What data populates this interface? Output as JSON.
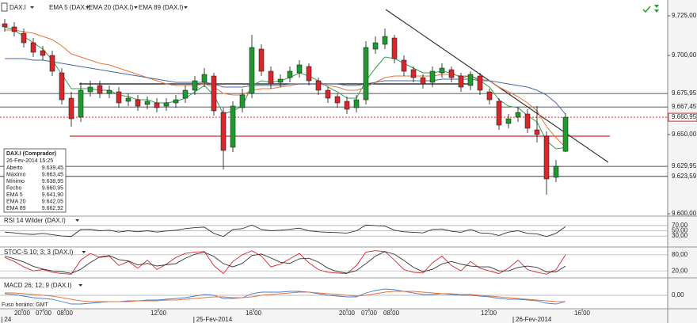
{
  "chart_data": [
    {
      "type": "candlestick",
      "title": "DAX.I",
      "xlim": [
        -0.5,
        69.75
      ],
      "x": [
        0,
        1,
        2,
        3,
        4,
        5,
        6,
        7,
        8,
        9,
        10,
        11,
        12,
        13,
        14,
        15,
        16,
        17,
        18,
        19,
        20,
        21,
        22,
        23,
        24,
        25,
        26,
        27,
        28,
        29,
        30,
        31,
        32,
        33,
        34,
        35,
        36,
        37,
        38,
        39,
        40,
        41,
        42,
        43,
        44,
        45,
        46,
        47,
        48,
        49,
        50,
        51,
        52,
        53,
        54,
        55,
        56,
        57,
        58,
        59
      ],
      "open": [
        9720,
        9718,
        9714,
        9708,
        9703,
        9700,
        9689,
        9673,
        9661,
        9677,
        9681,
        9676,
        9677,
        9671,
        9672,
        9669,
        9670,
        9668,
        9670,
        9673,
        9678,
        9683,
        9687,
        9664,
        9642,
        9667,
        9676,
        9704,
        9690,
        9683,
        9686,
        9689,
        9693,
        9684,
        9678,
        9674,
        9671,
        9667,
        9672,
        9704,
        9707,
        9711,
        9697,
        9691,
        9686,
        9683,
        9689,
        9691,
        9687,
        9681,
        9687,
        9677,
        9671,
        9657,
        9661,
        9663,
        9653,
        9649,
        9623,
        9639.45
      ],
      "high": [
        9723,
        9721,
        9717,
        9711,
        9706,
        9703,
        9692,
        9677,
        9683,
        9684,
        9684,
        9681,
        9680,
        9676,
        9675,
        9674,
        9673,
        9673,
        9675,
        9681,
        9687,
        9692,
        9689,
        9667,
        9671,
        9679,
        9713,
        9707,
        9693,
        9688,
        9693,
        9697,
        9695,
        9686,
        9680,
        9676,
        9674,
        9675,
        9709,
        9712,
        9717,
        9713,
        9700,
        9693,
        9688,
        9693,
        9695,
        9693,
        9689,
        9690,
        9689,
        9679,
        9673,
        9663,
        9667,
        9666,
        9668,
        9652,
        9634,
        9663.45
      ],
      "low": [
        9715,
        9712,
        9705,
        9699,
        9697,
        9687,
        9669,
        9655,
        9658,
        9674,
        9673,
        9673,
        9667,
        9668,
        9665,
        9666,
        9664,
        9665,
        9667,
        9670,
        9675,
        9680,
        9662,
        9628,
        9639,
        9664,
        9673,
        9687,
        9679,
        9680,
        9683,
        9686,
        9681,
        9675,
        9670,
        9667,
        9663,
        9664,
        9669,
        9701,
        9704,
        9695,
        9687,
        9683,
        9679,
        9680,
        9686,
        9683,
        9677,
        9678,
        9675,
        9669,
        9653,
        9654,
        9658,
        9651,
        9645,
        9612,
        9620,
        9638.95
      ],
      "close": [
        9718,
        9715,
        9708,
        9702,
        9700,
        9690,
        9672,
        9660,
        9678,
        9680,
        9676,
        9678,
        9670,
        9673,
        9668,
        9671,
        9667,
        9670,
        9672,
        9678,
        9684,
        9688,
        9665,
        9640,
        9668,
        9675,
        9705,
        9690,
        9682,
        9685,
        9690,
        9694,
        9684,
        9678,
        9673,
        9670,
        9666,
        9672,
        9705,
        9708,
        9712,
        9698,
        9690,
        9686,
        9682,
        9690,
        9692,
        9686,
        9680,
        9688,
        9678,
        9672,
        9656,
        9660,
        9664,
        9654,
        9650,
        9622,
        9630,
        9660.95
      ],
      "up_color": "#1f9a2e",
      "down_color": "#d9262a",
      "series": [
        {
          "name": "EMA 5 (DAX.I)",
          "color": "#2e9e4e",
          "values": [
            9718,
            9716,
            9712,
            9708,
            9704,
            9697,
            9688,
            9679,
            9679,
            9679,
            9678,
            9678,
            9675,
            9674,
            9672,
            9672,
            9670,
            9670,
            9671,
            9673,
            9677,
            9681,
            9675,
            9663,
            9665,
            9668,
            9681,
            9684,
            9683,
            9684,
            9686,
            9689,
            9687,
            9684,
            9680,
            9677,
            9673,
            9673,
            9684,
            9692,
            9699,
            9698,
            9695,
            9692,
            9689,
            9689,
            9690,
            9689,
            9686,
            9687,
            9684,
            9680,
            9672,
            9668,
            9667,
            9662,
            9658,
            9646,
            9641,
            9641.9
          ]
        },
        {
          "name": "EMA 20 (DAX.I)",
          "color": "#e8743b",
          "values": [
            9716,
            9716,
            9715,
            9714,
            9712,
            9710,
            9706,
            9701,
            9699,
            9697,
            9695,
            9694,
            9692,
            9690,
            9688,
            9686,
            9684,
            9682,
            9681,
            9681,
            9681,
            9682,
            9680,
            9676,
            9675,
            9675,
            9678,
            9679,
            9679,
            9680,
            9681,
            9682,
            9682,
            9682,
            9681,
            9680,
            9678,
            9678,
            9680,
            9683,
            9686,
            9687,
            9687,
            9687,
            9687,
            9687,
            9688,
            9688,
            9687,
            9687,
            9685,
            9684,
            9680,
            9677,
            9674,
            9670,
            9665,
            9655,
            9648,
            9642.05
          ]
        },
        {
          "name": "EMA 89 (DAX.I)",
          "color": "#4a66a8",
          "values": [
            9698,
            9698,
            9698,
            9697,
            9697,
            9696,
            9695,
            9694,
            9693,
            9692,
            9691,
            9690,
            9689,
            9688,
            9687,
            9686,
            9685,
            9684,
            9683,
            9683,
            9683,
            9683,
            9682,
            9680,
            9680,
            9680,
            9681,
            9681,
            9681,
            9681,
            9682,
            9682,
            9682,
            9682,
            9682,
            9682,
            9681,
            9681,
            9682,
            9683,
            9684,
            9684,
            9684,
            9684,
            9684,
            9684,
            9685,
            9685,
            9685,
            9685,
            9684,
            9684,
            9683,
            9682,
            9681,
            9680,
            9678,
            9675,
            9670,
            9662.92
          ]
        }
      ],
      "ylim": [
        9599,
        9731
      ],
      "yticks": [
        {
          "value": 9725,
          "label": "9.725,00"
        },
        {
          "value": 9700,
          "label": "9.700,00"
        },
        {
          "value": 9650,
          "label": "9.650,00"
        },
        {
          "value": 9600,
          "label": "9.600,00"
        }
      ],
      "levels": [
        {
          "value": 9675.95,
          "label": "9.675,95"
        },
        {
          "value": 9667.45,
          "label": "9.667,45"
        },
        {
          "value": 9629.95,
          "label": "9.629,95"
        },
        {
          "value": 9623.59,
          "label": "9.623,59"
        }
      ],
      "last_price": {
        "value": 9660.95,
        "label": "9.660,95",
        "color": "#d9262a"
      },
      "lines": [
        {
          "x": [
            6.83,
            63.67
          ],
          "y": [
            9649,
            9649
          ],
          "color": "#d9262a"
        },
        {
          "x": [
            7.83,
            49.08
          ],
          "y": [
            9682,
            9682
          ],
          "color": "#111111"
        },
        {
          "x": [
            40.08,
            63.5
          ],
          "y": [
            9729,
            9632.5
          ],
          "color": "#333333"
        }
      ],
      "xticks": [
        {
          "value": 1.83,
          "label": "20:00"
        },
        {
          "value": 4.08,
          "label": "07:00"
        },
        {
          "value": 6.33,
          "label": "08:00"
        },
        {
          "value": 16.17,
          "label": "12:00"
        },
        {
          "value": 26.17,
          "label": "16:00"
        },
        {
          "value": 36,
          "label": "20:00"
        },
        {
          "value": 38.33,
          "label": "07:00"
        },
        {
          "value": 40.67,
          "label": "08:00"
        },
        {
          "value": 50.92,
          "label": "12:00"
        },
        {
          "value": 60.75,
          "label": "16:00"
        }
      ],
      "date_ticks": [
        {
          "value": -0.3,
          "label": "24"
        },
        {
          "value": 19.9,
          "label": "25-Fev-2014"
        },
        {
          "value": 53.5,
          "label": "26-Fev-2014"
        }
      ],
      "timezone": "Fuso horário: GMT",
      "info": {
        "title": "DAX.I (Comprador)",
        "time": "26-Fev-2014 15:25",
        "rows": [
          [
            "Aberto",
            "9.639,45"
          ],
          [
            "Máximo",
            "9.663,45"
          ],
          [
            "Mínimo",
            "9.638,95"
          ],
          [
            "Fecho",
            "9.660,95"
          ],
          [
            "EMA 5",
            "9.641,90"
          ],
          [
            "EMA 20",
            "9.642,05"
          ],
          [
            "EMA 89",
            "9.662,92"
          ]
        ]
      }
    },
    {
      "type": "line",
      "title": "RSI 14 Wilder (DAX.I)",
      "ylim": [
        0,
        100
      ],
      "yticks": [
        {
          "value": 70,
          "label": "70,00"
        },
        {
          "value": 50,
          "label": "50,00"
        },
        {
          "value": 30,
          "label": "30,00"
        }
      ],
      "series": [
        {
          "color": "#333333",
          "values": [
            45,
            42,
            38,
            36,
            40,
            35,
            30,
            28,
            55,
            56,
            50,
            52,
            45,
            50,
            46,
            50,
            45,
            49,
            52,
            58,
            62,
            64,
            40,
            28,
            55,
            58,
            72,
            55,
            50,
            52,
            56,
            60,
            50,
            46,
            44,
            43,
            41,
            50,
            72,
            70,
            68,
            52,
            46,
            44,
            42,
            55,
            57,
            48,
            44,
            55,
            42,
            40,
            32,
            45,
            50,
            40,
            38,
            28,
            40,
            66
          ]
        }
      ]
    },
    {
      "type": "line",
      "title": "STOC-S 10; 3; 3 (DAX.I)",
      "ylim": [
        0,
        100
      ],
      "yticks": [
        {
          "value": 80,
          "label": "80,00"
        },
        {
          "value": 20,
          "label": "20,00"
        }
      ],
      "series": [
        {
          "color": "#d9262a",
          "values": [
            70,
            55,
            35,
            20,
            25,
            15,
            10,
            8,
            60,
            85,
            70,
            75,
            40,
            55,
            30,
            60,
            25,
            45,
            70,
            85,
            90,
            92,
            40,
            10,
            55,
            80,
            95,
            75,
            35,
            45,
            65,
            85,
            50,
            25,
            15,
            12,
            10,
            40,
            90,
            95,
            92,
            60,
            25,
            15,
            12,
            50,
            75,
            40,
            20,
            55,
            30,
            20,
            10,
            30,
            60,
            25,
            15,
            8,
            25,
            80
          ]
        },
        {
          "color": "#333333",
          "values": [
            75,
            65,
            53,
            37,
            27,
            20,
            17,
            11,
            26,
            51,
            72,
            77,
            62,
            57,
            42,
            48,
            38,
            43,
            47,
            67,
            82,
            89,
            74,
            47,
            35,
            48,
            77,
            83,
            68,
            52,
            48,
            65,
            67,
            53,
            30,
            17,
            12,
            21,
            47,
            75,
            92,
            82,
            59,
            33,
            17,
            26,
            46,
            55,
            45,
            38,
            35,
            35,
            20,
            20,
            33,
            38,
            33,
            16,
            16,
            38
          ]
        }
      ]
    },
    {
      "type": "line",
      "title": "MACD 26; 12; 9 (DAX.I)",
      "ylim": [
        -16,
        16
      ],
      "yticks": [
        {
          "value": 0,
          "label": "0,00"
        }
      ],
      "series": [
        {
          "color": "#4a7fd0",
          "values": [
            2,
            1,
            -1,
            -3,
            -4,
            -5,
            -8,
            -11,
            -11,
            -10,
            -9,
            -8,
            -8,
            -7,
            -7,
            -6,
            -6,
            -5,
            -4,
            -3,
            -1,
            1,
            0,
            -4,
            -4,
            -3,
            2,
            4,
            4,
            4,
            5,
            5,
            4,
            2,
            0,
            -1,
            -2,
            -2,
            3,
            6,
            8,
            7,
            5,
            3,
            1,
            1,
            2,
            1,
            0,
            0,
            -1,
            -2,
            -4,
            -5,
            -5,
            -6,
            -7,
            -10,
            -11,
            -8
          ]
        },
        {
          "color": "#e8743b",
          "values": [
            3,
            3,
            2,
            1,
            0,
            -1,
            -3,
            -5,
            -7,
            -8,
            -8,
            -8,
            -8,
            -8,
            -7,
            -7,
            -7,
            -6,
            -6,
            -5,
            -4,
            -3,
            -2,
            -2,
            -3,
            -3,
            -2,
            0,
            1,
            2,
            3,
            4,
            4,
            3,
            2,
            1,
            0,
            -1,
            0,
            2,
            4,
            5,
            5,
            5,
            4,
            3,
            2,
            2,
            1,
            1,
            0,
            -1,
            -2,
            -3,
            -4,
            -5,
            -6,
            -7,
            -8,
            -8
          ]
        }
      ]
    }
  ]
}
